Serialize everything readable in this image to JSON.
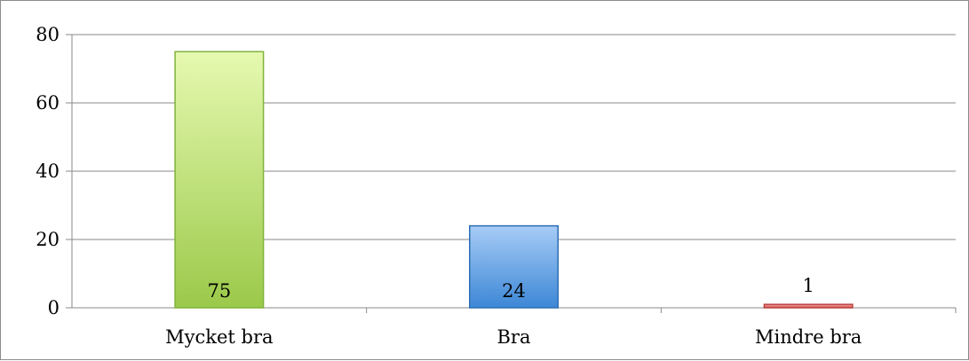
{
  "chart_data": {
    "type": "bar",
    "categories": [
      "Mycket bra",
      "Bra",
      "Mindre bra"
    ],
    "values": [
      75,
      24,
      1
    ],
    "data_labels": [
      "75",
      "24",
      "1"
    ],
    "title": "",
    "xlabel": "",
    "ylabel": "",
    "ylim": [
      0,
      80
    ],
    "yticks": [
      0,
      20,
      40,
      60,
      80
    ],
    "ytick_labels": [
      "0",
      "20",
      "40",
      "60",
      "80"
    ],
    "grid": true,
    "legend": "none",
    "bar_colors": [
      {
        "top": "#e6f9b0",
        "bottom": "#9bc94a",
        "stroke": "#7fb33a"
      },
      {
        "top": "#a7ccf6",
        "bottom": "#3d87d6",
        "stroke": "#2f6fb5"
      },
      {
        "top": "#f3a6a6",
        "bottom": "#d9534f",
        "stroke": "#b94340"
      }
    ],
    "data_label_position": [
      "inside-bottom",
      "inside-bottom",
      "outside-top"
    ]
  }
}
